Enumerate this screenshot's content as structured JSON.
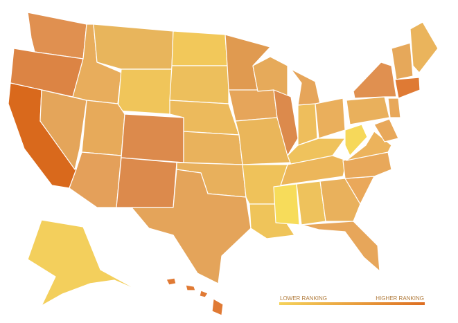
{
  "legend": {
    "low_label": "LOWER RANKING",
    "high_label": "HIGHER RANKING",
    "colors": [
      "#f5d25a",
      "#dd6e22"
    ]
  }
}
